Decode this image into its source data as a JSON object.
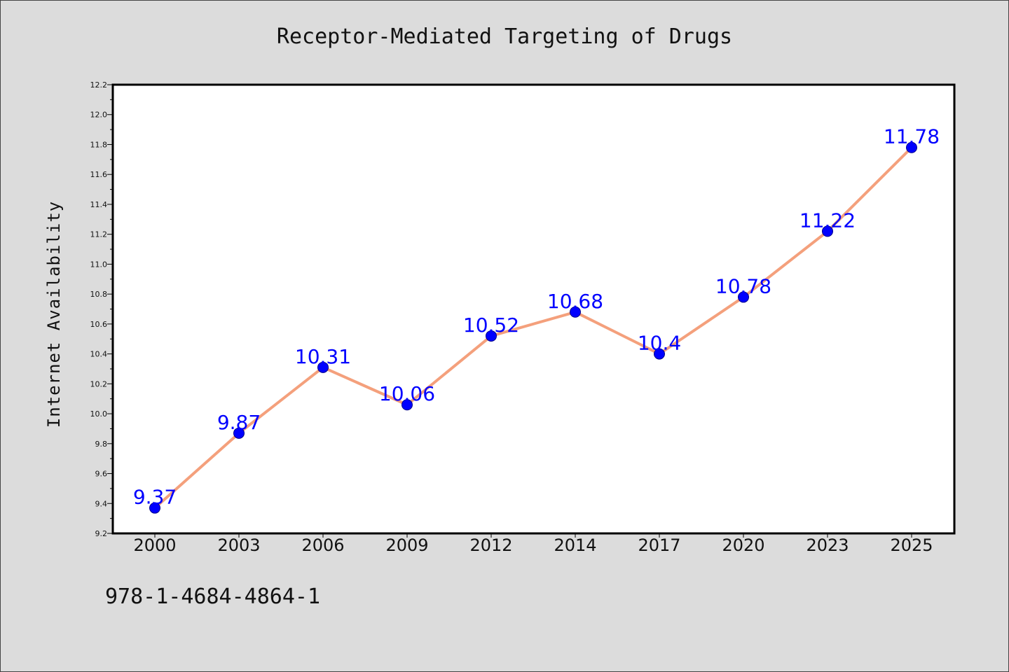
{
  "title": "Receptor-Mediated Targeting of Drugs",
  "footer_text": "978-1-4684-4864-1",
  "colors": {
    "background": "#dcdcdc",
    "plot_background": "#ffffff",
    "line": "#f4a07c",
    "marker": "#0000ff",
    "data_label": "#0000ff"
  },
  "chart_data": {
    "type": "line",
    "title": "Receptor-Mediated Targeting of Drugs",
    "xlabel": "",
    "ylabel": "Internet Availability",
    "categories": [
      "2000",
      "2003",
      "2006",
      "2009",
      "2012",
      "2014",
      "2017",
      "2020",
      "2023",
      "2025"
    ],
    "series": [
      {
        "values": [
          9.37,
          9.87,
          10.31,
          10.06,
          10.52,
          10.68,
          10.4,
          10.78,
          11.22,
          11.78
        ],
        "labels": [
          "9.37",
          "9.87",
          "10.31",
          "10.06",
          "10.52",
          "10.68",
          "10.4",
          "10.78",
          "11.22",
          "11.78"
        ]
      }
    ],
    "ylim": [
      9.2,
      12.2
    ],
    "yticks": [
      "9.2",
      "9.4",
      "9.6",
      "9.8",
      "10.0",
      "10.2",
      "10.4",
      "10.6",
      "10.8",
      "11.0",
      "11.2",
      "11.4",
      "11.6",
      "11.8",
      "12.0",
      "12.2"
    ],
    "grid": false,
    "legend": false,
    "data_labels": true
  }
}
